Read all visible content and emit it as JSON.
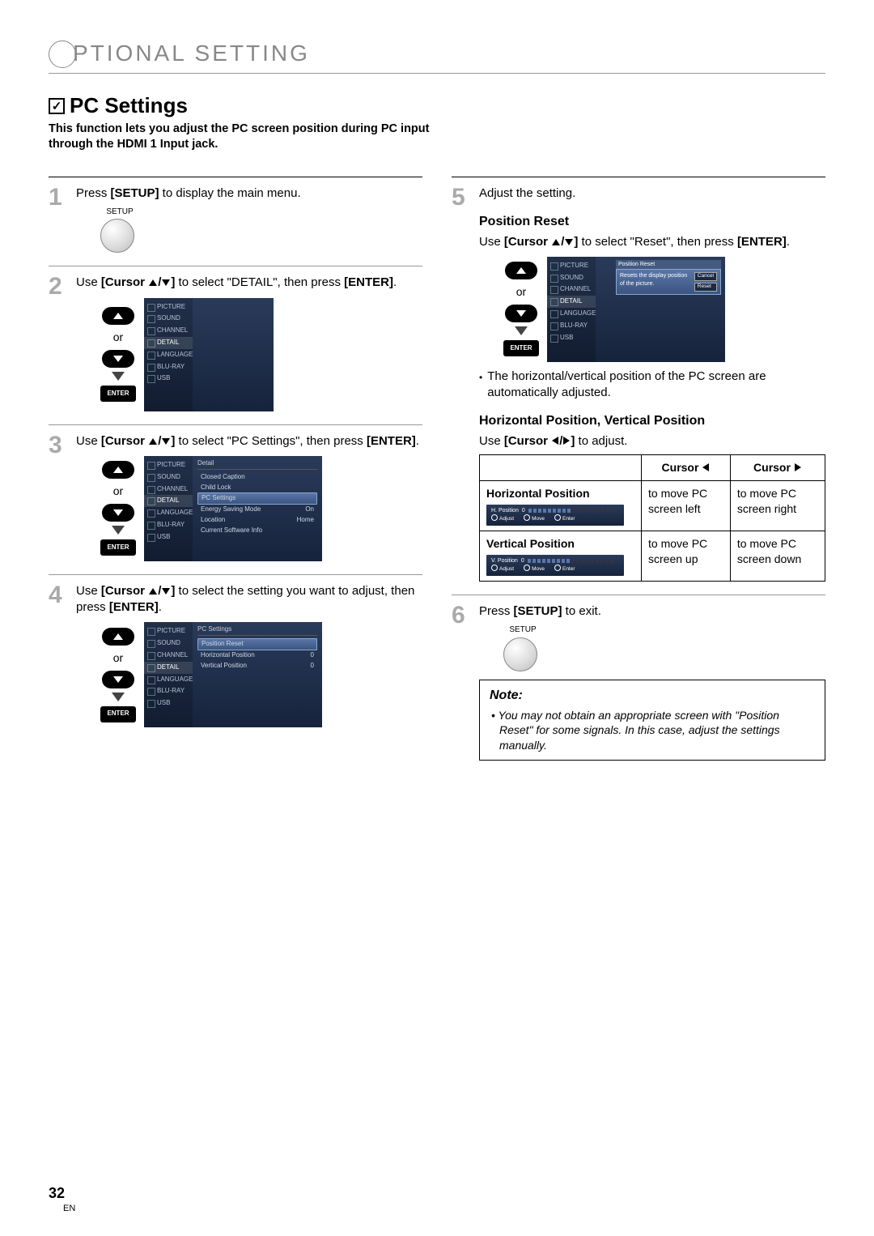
{
  "header": {
    "chapter": "PTIONAL   SETTING"
  },
  "section": {
    "title": "PC Settings",
    "intro": "This function lets you adjust the PC screen position during PC input through the HDMI 1 Input jack."
  },
  "remote": {
    "setup": "SETUP",
    "enter": "ENTER",
    "or": "or"
  },
  "sidebar": [
    "PICTURE",
    "SOUND",
    "CHANNEL",
    "DETAIL",
    "LANGUAGE",
    "BLU-RAY",
    "USB"
  ],
  "steps": {
    "s1": {
      "text_a": "Press ",
      "b1": "[SETUP]",
      "text_b": " to display the main menu."
    },
    "s2": {
      "text_a": "Use ",
      "b1": "[Cursor ",
      "b2": "]",
      "text_b": " to select \"DETAIL\", then press ",
      "b3": "[ENTER]",
      "text_c": "."
    },
    "s3": {
      "text_a": "Use ",
      "b1": "[Cursor ",
      "b2": "]",
      "text_b": " to select \"PC Settings\", then press ",
      "b3": "[ENTER]",
      "text_c": "."
    },
    "s4": {
      "text_a": "Use ",
      "b1": "[Cursor ",
      "b2": "]",
      "text_b": " to select the setting you want to adjust, then press ",
      "b3": "[ENTER]",
      "text_c": "."
    },
    "s5": {
      "text": "Adjust the setting."
    },
    "s6": {
      "text_a": "Press ",
      "b1": "[SETUP]",
      "text_b": " to exit."
    }
  },
  "tv3": {
    "header": "Detail",
    "items": [
      {
        "label": "Closed Caption",
        "val": ""
      },
      {
        "label": "Child Lock",
        "val": ""
      },
      {
        "label": "PC Settings",
        "val": "",
        "sel": true
      },
      {
        "label": "Energy Saving Mode",
        "val": "On"
      },
      {
        "label": "Location",
        "val": "Home"
      },
      {
        "label": "Current Software Info",
        "val": ""
      }
    ]
  },
  "tv4": {
    "header": "PC Settings",
    "items": [
      {
        "label": "Position Reset",
        "val": "",
        "sel": true
      },
      {
        "label": "Horizontal Position",
        "val": "0"
      },
      {
        "label": "Vertical Position",
        "val": "0"
      }
    ]
  },
  "positionReset": {
    "head": "Position Reset",
    "line_a": "Use ",
    "b1": "[Cursor ",
    "b2": "]",
    "line_b": " to select \"Reset\", then press ",
    "b3": "[ENTER]",
    "line_c": ".",
    "dialog_header": "Position Reset",
    "dialog_text": "Resets the display position of the picture.",
    "btn_cancel": "Cancel",
    "btn_reset": "Reset",
    "bullet": "The horizontal/vertical position of the PC screen are automatically adjusted."
  },
  "hvPos": {
    "head": "Horizontal Position, Vertical Position",
    "line_a": "Use ",
    "b1": "[Cursor ",
    "b2": "]",
    "line_b": " to adjust.",
    "th_left": "Cursor",
    "th_right": "Cursor",
    "hp": "Horizontal Position",
    "hp_left": "to move PC screen left",
    "hp_right": "to move PC screen right",
    "vp": "Vertical Position",
    "vp_left": "to move PC screen up",
    "vp_right": "to move PC screen down",
    "mini_h_label": "H. Position",
    "mini_v_label": "V. Position",
    "mini_val": "0",
    "mini_adjust": "Adjust",
    "mini_move": "Move",
    "mini_enter": "Enter"
  },
  "note": {
    "title": "Note:",
    "text": "• You may not obtain an appropriate screen with \"Position Reset\" for some signals. In this case, adjust the settings manually."
  },
  "page": {
    "num": "32",
    "lang": "EN"
  }
}
